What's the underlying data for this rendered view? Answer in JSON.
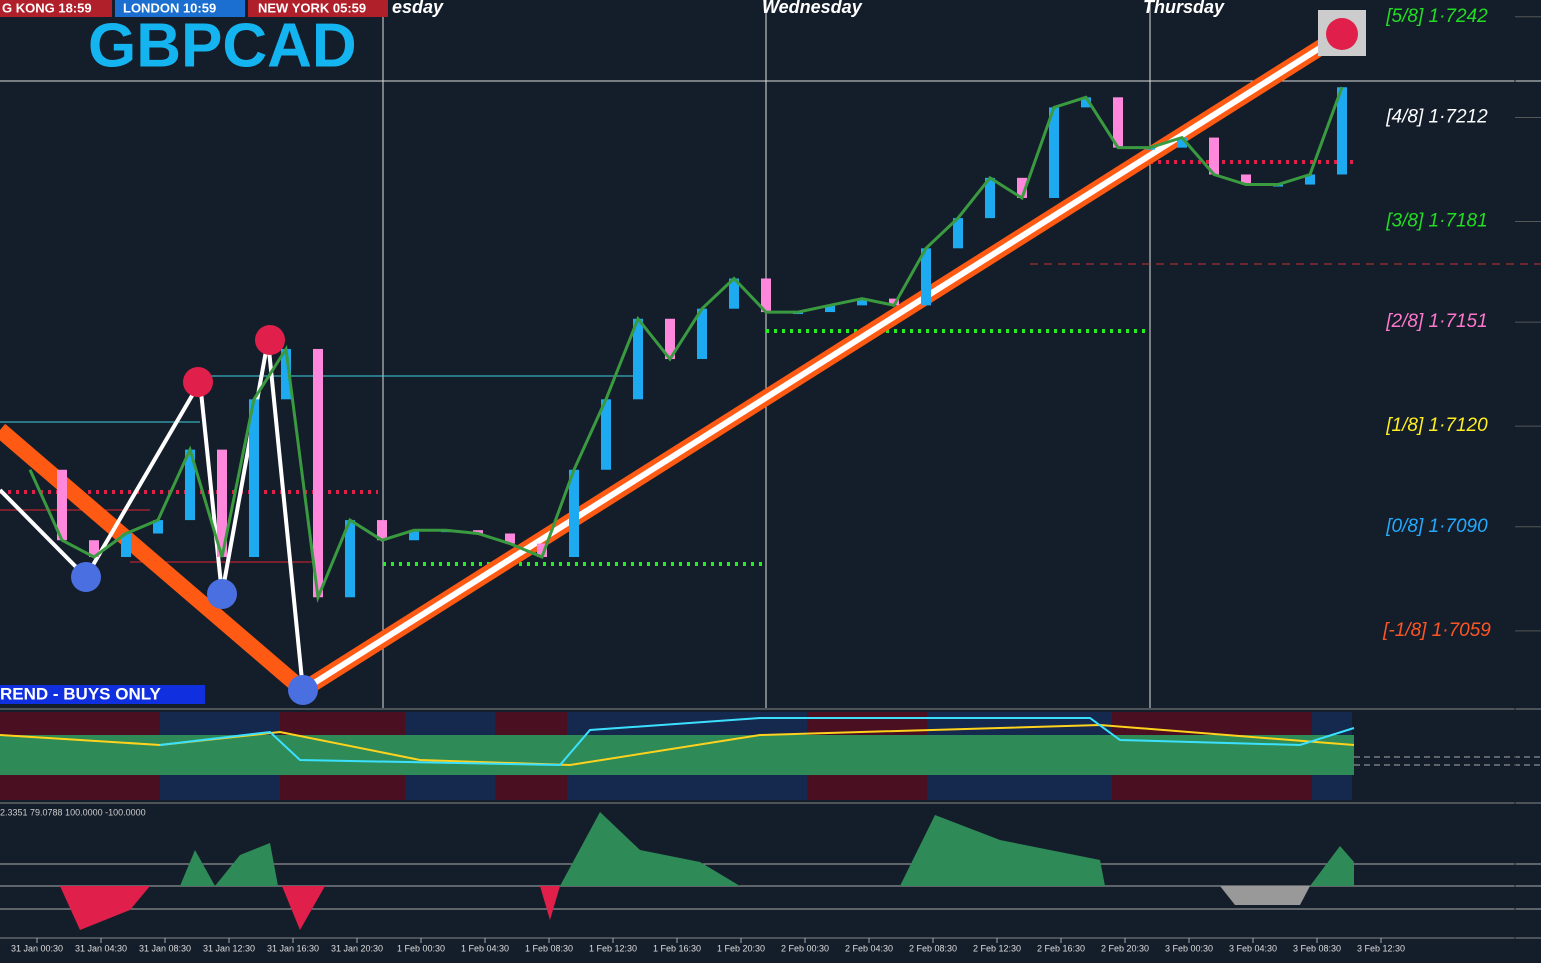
{
  "chart_data": {
    "type": "line",
    "title": "GBPCAD",
    "clocks": [
      "G KONG 18:59",
      "LONDON 10:59",
      "NEW YORK 05:59"
    ],
    "days": [
      "esday",
      "Wednesday",
      "Thursday"
    ],
    "banner": "REND - BUYS ONLY",
    "indicator_header": "2.3351 79.0788 100.0000 -100.0000",
    "x_labels": [
      "31 Jan 00:30",
      "31 Jan 04:30",
      "31 Jan 08:30",
      "31 Jan 12:30",
      "31 Jan 16:30",
      "31 Jan 20:30",
      "1 Feb 00:30",
      "1 Feb 04:30",
      "1 Feb 08:30",
      "1 Feb 12:30",
      "1 Feb 16:30",
      "1 Feb 20:30",
      "2 Feb 00:30",
      "2 Feb 04:30",
      "2 Feb 08:30",
      "2 Feb 12:30",
      "2 Feb 16:30",
      "2 Feb 20:30",
      "3 Feb 00:30",
      "3 Feb 04:30",
      "3 Feb 08:30",
      "3 Feb 12:30"
    ],
    "values": [
      1.7107,
      1.7086,
      1.7081,
      1.7088,
      1.7092,
      1.7113,
      1.7081,
      1.7128,
      1.7143,
      1.7069,
      1.7092,
      1.7086,
      1.7089,
      1.7089,
      1.7088,
      1.7085,
      1.7081,
      1.7107,
      1.7128,
      1.7152,
      1.714,
      1.7155,
      1.7164,
      1.7154,
      1.7154,
      1.7156,
      1.7158,
      1.7156,
      1.7173,
      1.7182,
      1.7194,
      1.7188,
      1.7215,
      1.7218,
      1.7203,
      1.7203,
      1.7206,
      1.7195,
      1.7192,
      1.7192,
      1.7195,
      1.7221
    ],
    "ylim": [
      1.7036,
      1.7247
    ],
    "yticks": [
      {
        "value": 1.7242,
        "label": "[5/8] 1·7242"
      },
      {
        "value": 1.7212,
        "label": "[4/8] 1·7212"
      },
      {
        "value": 1.7181,
        "label": "[3/8] 1·7181"
      },
      {
        "value": 1.7151,
        "label": "[2/8] 1·7151"
      },
      {
        "value": 1.712,
        "label": "[1/8] 1·7120"
      },
      {
        "value": 1.709,
        "label": "[0/8] 1·7090"
      },
      {
        "value": 1.7059,
        "label": "[-1/8] 1·7059"
      }
    ],
    "ytick_colors": [
      "#22dd22",
      "#ffffff",
      "#22dd22",
      "#ff77cc",
      "#ffee22",
      "#22aaff",
      "#ff5522"
    ],
    "up_color": "#1eaaf0",
    "down_color": "#ff88dd"
  }
}
